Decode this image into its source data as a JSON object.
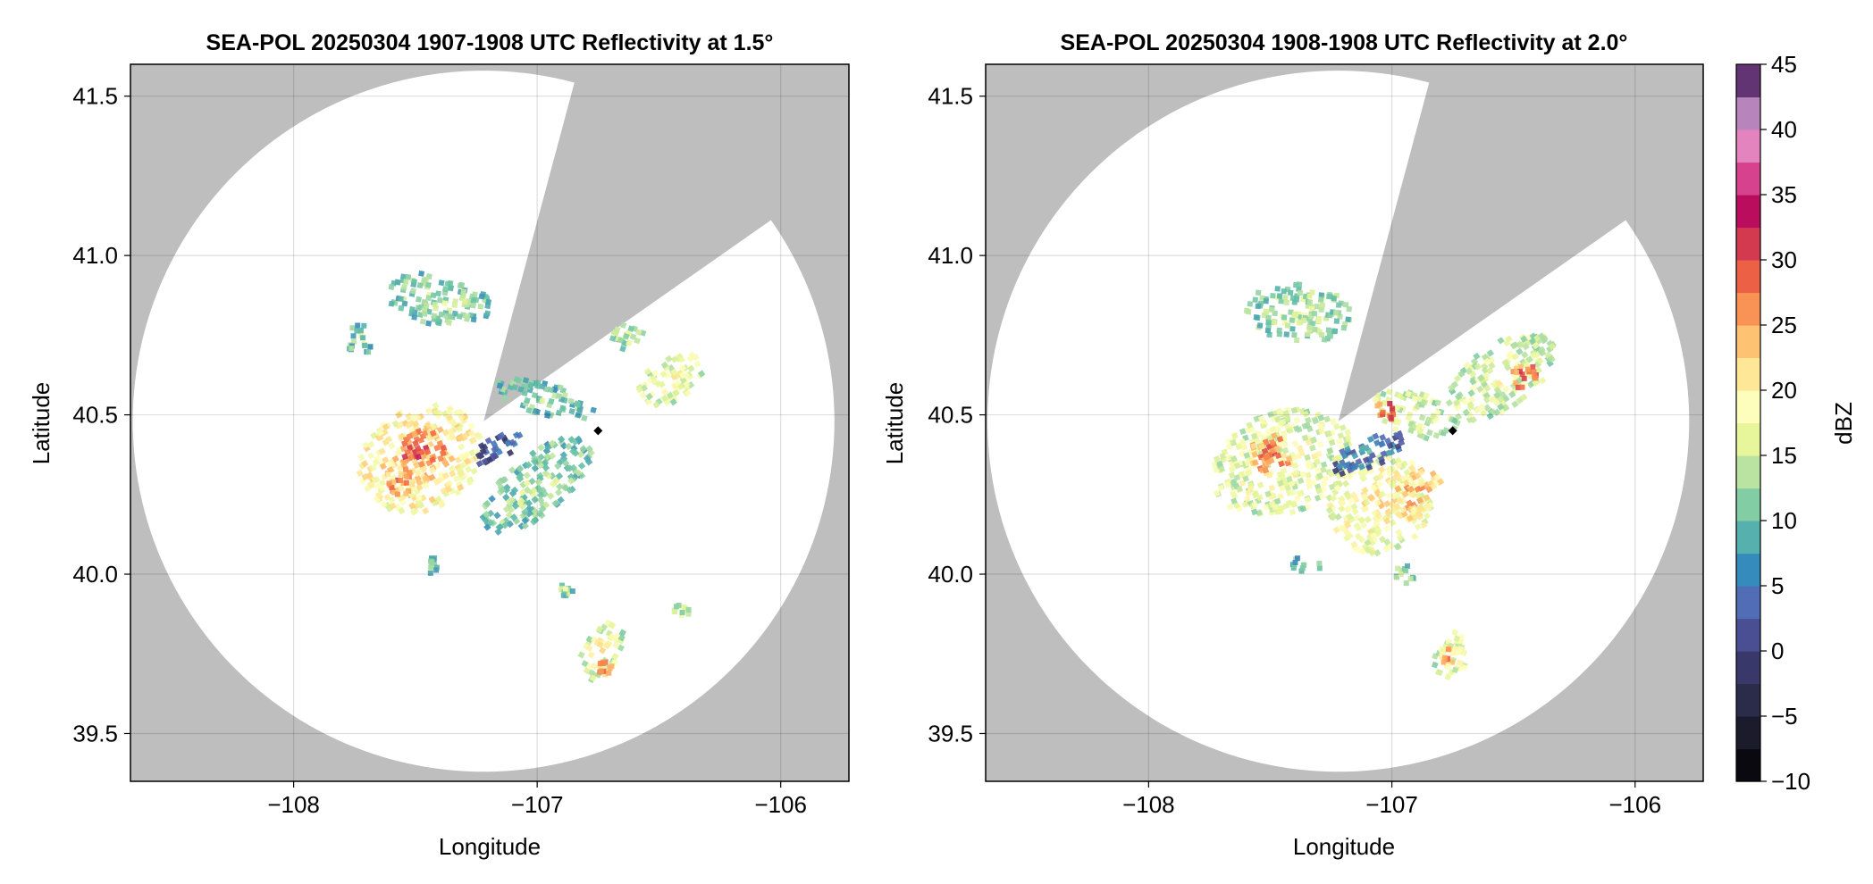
{
  "chart_data": [
    {
      "type": "heatmap",
      "subtype": "radar_ppi",
      "title": "SEA-POL 20250304 1907-1908 UTC Reflectivity at 1.5°",
      "xlabel": "Longitude",
      "ylabel": "Latitude",
      "xlim": [
        -108.67,
        -105.72
      ],
      "ylim": [
        39.35,
        41.6
      ],
      "xticks": [
        -108,
        -107,
        -106
      ],
      "yticks": [
        39.5,
        40.0,
        40.5,
        41.0,
        41.5
      ],
      "xtick_labels": [
        "−108",
        "−107",
        "−106"
      ],
      "ytick_labels": [
        "39.5",
        "40.0",
        "40.5",
        "41.0",
        "41.5"
      ],
      "grid": true,
      "no_data_color": "#bebebe",
      "radar_center": [
        -107.22,
        40.48
      ],
      "range_lat_deg": 1.1,
      "blocked_sector_deg": [
        15,
        55
      ],
      "site_marker": [
        -106.75,
        40.45
      ],
      "echoes": [
        {
          "lon": -107.48,
          "lat": 40.36,
          "rx": 0.27,
          "ry": 0.16,
          "angle": -30,
          "dbz": 22
        },
        {
          "lon": -107.47,
          "lat": 40.39,
          "rx": 0.09,
          "ry": 0.06,
          "angle": -20,
          "dbz": 30
        },
        {
          "lon": -107.58,
          "lat": 40.29,
          "rx": 0.07,
          "ry": 0.05,
          "angle": 0,
          "dbz": 26
        },
        {
          "lon": -107.0,
          "lat": 40.28,
          "rx": 0.28,
          "ry": 0.09,
          "angle": -40,
          "dbz": 13
        },
        {
          "lon": -107.15,
          "lat": 40.4,
          "rx": 0.12,
          "ry": 0.04,
          "angle": -30,
          "dbz": 3
        },
        {
          "lon": -106.97,
          "lat": 40.55,
          "rx": 0.21,
          "ry": 0.05,
          "angle": 15,
          "dbz": 12
        },
        {
          "lon": -106.45,
          "lat": 40.61,
          "rx": 0.15,
          "ry": 0.07,
          "angle": -35,
          "dbz": 18
        },
        {
          "lon": -106.62,
          "lat": 40.74,
          "rx": 0.08,
          "ry": 0.04,
          "angle": 20,
          "dbz": 14
        },
        {
          "lon": -107.4,
          "lat": 40.86,
          "rx": 0.22,
          "ry": 0.08,
          "angle": 10,
          "dbz": 13
        },
        {
          "lon": -107.73,
          "lat": 40.73,
          "rx": 0.05,
          "ry": 0.06,
          "angle": 0,
          "dbz": 12
        },
        {
          "lon": -106.74,
          "lat": 39.76,
          "rx": 0.08,
          "ry": 0.1,
          "angle": 30,
          "dbz": 18
        },
        {
          "lon": -106.72,
          "lat": 39.7,
          "rx": 0.03,
          "ry": 0.03,
          "angle": 0,
          "dbz": 26
        },
        {
          "lon": -106.4,
          "lat": 39.89,
          "rx": 0.04,
          "ry": 0.02,
          "angle": 0,
          "dbz": 16
        },
        {
          "lon": -107.43,
          "lat": 40.03,
          "rx": 0.02,
          "ry": 0.03,
          "angle": 0,
          "dbz": 13
        },
        {
          "lon": -106.88,
          "lat": 39.95,
          "rx": 0.03,
          "ry": 0.02,
          "angle": 0,
          "dbz": 14
        }
      ]
    },
    {
      "type": "heatmap",
      "subtype": "radar_ppi",
      "title": "SEA-POL 20250304 1908-1908 UTC Reflectivity at 2.0°",
      "xlabel": "Longitude",
      "ylabel": "Latitude",
      "xlim": [
        -108.67,
        -105.72
      ],
      "ylim": [
        39.35,
        41.6
      ],
      "xticks": [
        -108,
        -107,
        -106
      ],
      "yticks": [
        39.5,
        40.0,
        40.5,
        41.0,
        41.5
      ],
      "xtick_labels": [
        "−108",
        "−107",
        "−106"
      ],
      "ytick_labels": [
        "39.5",
        "40.0",
        "40.5",
        "41.0",
        "41.5"
      ],
      "grid": true,
      "no_data_color": "#bebebe",
      "radar_center": [
        -107.22,
        40.48
      ],
      "range_lat_deg": 1.1,
      "blocked_sector_deg": [
        15,
        55
      ],
      "site_marker": [
        -106.75,
        40.45
      ],
      "echoes": [
        {
          "lon": -107.45,
          "lat": 40.35,
          "rx": 0.3,
          "ry": 0.16,
          "angle": -20,
          "dbz": 18
        },
        {
          "lon": -107.49,
          "lat": 40.38,
          "rx": 0.1,
          "ry": 0.06,
          "angle": -20,
          "dbz": 27
        },
        {
          "lon": -107.05,
          "lat": 40.22,
          "rx": 0.22,
          "ry": 0.15,
          "angle": -35,
          "dbz": 20
        },
        {
          "lon": -106.9,
          "lat": 40.25,
          "rx": 0.12,
          "ry": 0.07,
          "angle": -30,
          "dbz": 24
        },
        {
          "lon": -107.1,
          "lat": 40.38,
          "rx": 0.16,
          "ry": 0.05,
          "angle": -25,
          "dbz": 6
        },
        {
          "lon": -106.9,
          "lat": 40.5,
          "rx": 0.18,
          "ry": 0.07,
          "angle": 20,
          "dbz": 17
        },
        {
          "lon": -107.02,
          "lat": 40.51,
          "rx": 0.05,
          "ry": 0.03,
          "angle": 0,
          "dbz": 31
        },
        {
          "lon": -106.55,
          "lat": 40.62,
          "rx": 0.25,
          "ry": 0.1,
          "angle": -35,
          "dbz": 17
        },
        {
          "lon": -106.45,
          "lat": 40.62,
          "rx": 0.06,
          "ry": 0.04,
          "angle": 0,
          "dbz": 29
        },
        {
          "lon": -107.38,
          "lat": 40.82,
          "rx": 0.22,
          "ry": 0.09,
          "angle": 5,
          "dbz": 14
        },
        {
          "lon": -106.75,
          "lat": 39.75,
          "rx": 0.07,
          "ry": 0.08,
          "angle": 20,
          "dbz": 18
        },
        {
          "lon": -106.77,
          "lat": 39.74,
          "rx": 0.03,
          "ry": 0.03,
          "angle": 0,
          "dbz": 25
        },
        {
          "lon": -107.35,
          "lat": 40.03,
          "rx": 0.06,
          "ry": 0.03,
          "angle": 0,
          "dbz": 12
        },
        {
          "lon": -106.95,
          "lat": 40.0,
          "rx": 0.05,
          "ry": 0.03,
          "angle": 0,
          "dbz": 13
        }
      ]
    }
  ],
  "colorbar": {
    "label": "dBZ",
    "min": -10,
    "max": 45,
    "step": 2.5,
    "ticks": [
      -10,
      -5,
      0,
      5,
      10,
      15,
      20,
      25,
      30,
      35,
      40,
      45
    ],
    "tick_labels": [
      "−10",
      "−5",
      "0",
      "5",
      "10",
      "15",
      "20",
      "25",
      "30",
      "35",
      "40",
      "45"
    ],
    "color_stops": [
      {
        "v": -10,
        "c": "#000000"
      },
      {
        "v": -5,
        "c": "#24243a"
      },
      {
        "v": 0,
        "c": "#3f3f7a"
      },
      {
        "v": 3,
        "c": "#5a64b4"
      },
      {
        "v": 6,
        "c": "#3288bd"
      },
      {
        "v": 10,
        "c": "#66c2a5"
      },
      {
        "v": 13,
        "c": "#abdda4"
      },
      {
        "v": 16,
        "c": "#e6f598"
      },
      {
        "v": 19,
        "c": "#ffffbf"
      },
      {
        "v": 22,
        "c": "#fee08b"
      },
      {
        "v": 25,
        "c": "#fdae61"
      },
      {
        "v": 28,
        "c": "#f46d43"
      },
      {
        "v": 31,
        "c": "#d53e4f"
      },
      {
        "v": 34,
        "c": "#b8095f"
      },
      {
        "v": 37,
        "c": "#e0559e"
      },
      {
        "v": 40,
        "c": "#e7a6d4"
      },
      {
        "v": 42,
        "c": "#9c6fae"
      },
      {
        "v": 45,
        "c": "#3a0a4a"
      }
    ]
  }
}
